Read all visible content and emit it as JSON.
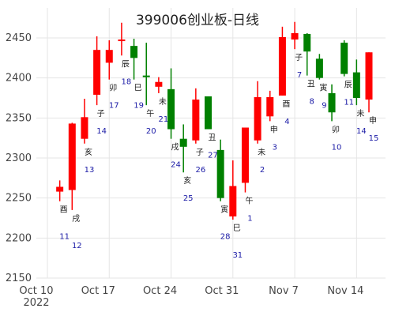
{
  "colors": {
    "up": "#ff0000",
    "down": "#008000",
    "grid": "#e5e5e5",
    "day_label": "#1a1aa6",
    "lunar_label": "#222222",
    "text": "#444444"
  },
  "chart_data": {
    "type": "candlestick",
    "title": "399006创业板-日线",
    "ylim": [
      2150,
      2470
    ],
    "yticks": [
      2150,
      2200,
      2250,
      2300,
      2350,
      2400,
      2450
    ],
    "xlim": [
      0,
      26
    ],
    "xticks": [
      {
        "x": 0,
        "label": "Oct 10",
        "label2": "2022"
      },
      {
        "x": 5,
        "label": "Oct 17",
        "label2": ""
      },
      {
        "x": 10,
        "label": "Oct 24",
        "label2": ""
      },
      {
        "x": 15,
        "label": "Oct 31",
        "label2": ""
      },
      {
        "x": 20,
        "label": "Nov 7",
        "label2": ""
      },
      {
        "x": 25,
        "label": "Nov 14",
        "label2": ""
      }
    ],
    "candles": [
      {
        "x": 1,
        "date": "2022-10-11",
        "open": 2258,
        "high": 2272,
        "low": 2246,
        "close": 2264,
        "day": "11",
        "lunar": "酉"
      },
      {
        "x": 2,
        "date": "2022-10-12",
        "open": 2260,
        "high": 2344,
        "low": 2235,
        "close": 2343,
        "day": "12",
        "lunar": "戌"
      },
      {
        "x": 3,
        "date": "2022-10-13",
        "open": 2324,
        "high": 2374,
        "low": 2318,
        "close": 2351,
        "day": "13",
        "lunar": "亥"
      },
      {
        "x": 4,
        "date": "2022-10-14",
        "open": 2379,
        "high": 2452,
        "low": 2366,
        "close": 2435,
        "day": "14",
        "lunar": "子"
      },
      {
        "x": 5,
        "date": "2022-10-17",
        "open": 2419,
        "high": 2447,
        "low": 2398,
        "close": 2435,
        "day": "17",
        "lunar": "卯"
      },
      {
        "x": 6,
        "date": "2022-10-18",
        "open": 2446,
        "high": 2469,
        "low": 2428,
        "close": 2448,
        "day": "18",
        "lunar": "辰"
      },
      {
        "x": 7,
        "date": "2022-10-19",
        "open": 2440,
        "high": 2449,
        "low": 2398,
        "close": 2425,
        "day": "19",
        "lunar": "巳"
      },
      {
        "x": 8,
        "date": "2022-10-20",
        "open": 2403,
        "high": 2444,
        "low": 2366,
        "close": 2401,
        "day": "20",
        "lunar": "午"
      },
      {
        "x": 9,
        "date": "2022-10-21",
        "open": 2389,
        "high": 2401,
        "low": 2381,
        "close": 2395,
        "day": "21",
        "lunar": "未"
      },
      {
        "x": 10,
        "date": "2022-10-24",
        "open": 2386,
        "high": 2412,
        "low": 2324,
        "close": 2336,
        "day": "24",
        "lunar": "戌"
      },
      {
        "x": 11,
        "date": "2022-10-25",
        "open": 2324,
        "high": 2342,
        "low": 2282,
        "close": 2314,
        "day": "25",
        "lunar": "亥"
      },
      {
        "x": 12,
        "date": "2022-10-26",
        "open": 2322,
        "high": 2387,
        "low": 2318,
        "close": 2373,
        "day": "26",
        "lunar": "子"
      },
      {
        "x": 13,
        "date": "2022-10-27",
        "open": 2377,
        "high": 2377,
        "low": 2336,
        "close": 2336,
        "day": "27",
        "lunar": "丑"
      },
      {
        "x": 14,
        "date": "2022-10-28",
        "open": 2310,
        "high": 2323,
        "low": 2246,
        "close": 2250,
        "day": "28",
        "lunar": "寅"
      },
      {
        "x": 15,
        "date": "2022-10-31",
        "open": 2227,
        "high": 2297,
        "low": 2223,
        "close": 2265,
        "day": "31",
        "lunar": "巳"
      },
      {
        "x": 16,
        "date": "2022-11-01",
        "open": 2269,
        "high": 2338,
        "low": 2257,
        "close": 2338,
        "day": "1",
        "lunar": "午"
      },
      {
        "x": 17,
        "date": "2022-11-02",
        "open": 2322,
        "high": 2396,
        "low": 2318,
        "close": 2376,
        "day": "2",
        "lunar": "未"
      },
      {
        "x": 18,
        "date": "2022-11-03",
        "open": 2352,
        "high": 2384,
        "low": 2346,
        "close": 2376,
        "day": "3",
        "lunar": "申"
      },
      {
        "x": 19,
        "date": "2022-11-04",
        "open": 2378,
        "high": 2464,
        "low": 2378,
        "close": 2451,
        "day": "4",
        "lunar": "酉"
      },
      {
        "x": 20,
        "date": "2022-11-07",
        "open": 2448,
        "high": 2470,
        "low": 2436,
        "close": 2456,
        "day": "7",
        "lunar": "子"
      },
      {
        "x": 21,
        "date": "2022-11-08",
        "open": 2455,
        "high": 2456,
        "low": 2403,
        "close": 2433,
        "day": "8",
        "lunar": "丑"
      },
      {
        "x": 22,
        "date": "2022-11-09",
        "open": 2424,
        "high": 2430,
        "low": 2398,
        "close": 2400,
        "day": "9",
        "lunar": "寅"
      },
      {
        "x": 23,
        "date": "2022-11-10",
        "open": 2381,
        "high": 2392,
        "low": 2346,
        "close": 2357,
        "day": "10",
        "lunar": "卯"
      },
      {
        "x": 24,
        "date": "2022-11-11",
        "open": 2444,
        "high": 2447,
        "low": 2402,
        "close": 2405,
        "day": "11",
        "lunar": "辰"
      },
      {
        "x": 25,
        "date": "2022-11-14",
        "open": 2407,
        "high": 2423,
        "low": 2366,
        "close": 2375,
        "day": "14",
        "lunar": "未"
      },
      {
        "x": 26,
        "date": "2022-11-15",
        "open": 2373,
        "high": 2432,
        "low": 2357,
        "close": 2432,
        "day": "15",
        "lunar": "申"
      }
    ]
  }
}
